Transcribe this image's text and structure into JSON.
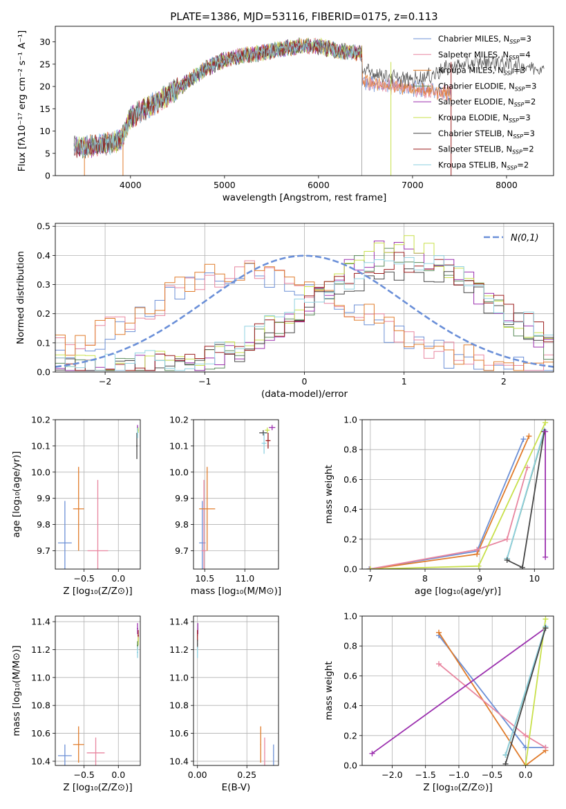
{
  "colors": {
    "Chabrier MILES": "#6b8fd6",
    "Salpeter MILES": "#e8859f",
    "Kroupa MILES": "#e07b2a",
    "Chabrier ELODIE": "#5a8a5a",
    "Salpeter ELODIE": "#9b2fae",
    "Kroupa ELODIE": "#c8e04a",
    "Chabrier STELIB": "#454545",
    "Salpeter STELIB": "#9b1c1c",
    "Kroupa STELIB": "#8fd1e0",
    "Gaussian": "#6a8fd8"
  },
  "chart_data": [
    {
      "type": "line",
      "title": "PLATE=1386, MJD=53116, FIBERID=0175, z=0.113",
      "xlabel": "wavelength [Angstrom, rest frame]",
      "ylabel": "Flux [fλ10⁻¹⁷ erg cm⁻² s⁻¹ A⁻¹]",
      "xlim": [
        3200,
        8500
      ],
      "ylim": [
        0,
        33.5
      ],
      "xticks": [
        "4000",
        "5000",
        "6000",
        "7000",
        "8000"
      ],
      "yticks": [
        "0",
        "5",
        "10",
        "15",
        "20",
        "25",
        "30"
      ],
      "grid": false,
      "legend_position": "top-right",
      "legend": [
        {
          "label": "Chabrier MILES, N",
          "sub": "SSP",
          "tail": "=3"
        },
        {
          "label": "Salpeter MILES, N",
          "sub": "SSP",
          "tail": "=4"
        },
        {
          "label": "Kroupa MILES, N",
          "sub": "SSP",
          "tail": "=3"
        },
        {
          "label": "Chabrier ELODIE, N",
          "sub": "SSP",
          "tail": "=3"
        },
        {
          "label": "Salpeter ELODIE, N",
          "sub": "SSP",
          "tail": "=2"
        },
        {
          "label": "Kroupa ELODIE, N",
          "sub": "SSP",
          "tail": "=3"
        },
        {
          "label": "Chabrier STELIB, N",
          "sub": "SSP",
          "tail": "=3"
        },
        {
          "label": "Salpeter STELIB, N",
          "sub": "SSP",
          "tail": "=2"
        },
        {
          "label": "Kroupa STELIB, N",
          "sub": "SSP",
          "tail": "=2"
        }
      ],
      "continuum_anchors": [
        [
          3400,
          6.2
        ],
        [
          3600,
          6.5
        ],
        [
          3900,
          8
        ],
        [
          4000,
          13
        ],
        [
          4200,
          15.5
        ],
        [
          4400,
          18
        ],
        [
          4600,
          21
        ],
        [
          4800,
          24
        ],
        [
          5000,
          26
        ],
        [
          5200,
          27
        ],
        [
          5400,
          27.5
        ],
        [
          5600,
          28.5
        ],
        [
          5800,
          29
        ],
        [
          6000,
          29
        ],
        [
          6200,
          28
        ],
        [
          6400,
          27.5
        ],
        [
          6500,
          27.5
        ]
      ],
      "red_tail": {
        "data": [
          [
            6450,
            23.5
          ],
          [
            6600,
            23
          ],
          [
            6800,
            22
          ],
          [
            7000,
            21.5
          ],
          [
            7200,
            22.5
          ],
          [
            7400,
            24.5
          ],
          [
            7600,
            25
          ],
          [
            7800,
            25.5
          ],
          [
            8000,
            25
          ],
          [
            8200,
            24.5
          ],
          [
            8400,
            24
          ]
        ],
        "models_miles": [
          [
            6450,
            21.5
          ],
          [
            6600,
            20.5
          ],
          [
            6800,
            20
          ],
          [
            7000,
            19.5
          ],
          [
            7200,
            19
          ],
          [
            7410,
            18.5
          ]
        ]
      },
      "drop_lines": [
        [
          3510,
          "#e07b2a"
        ],
        [
          3920,
          "#e07b2a"
        ],
        [
          6460,
          "#aaaaaa"
        ],
        [
          6770,
          "#c8e04a"
        ],
        [
          7410,
          "#9b1c1c"
        ]
      ]
    },
    {
      "type": "step",
      "xlabel": "(data-model)/error",
      "ylabel": "Normed distribution",
      "xlim": [
        -2.5,
        2.5
      ],
      "ylim": [
        0,
        0.51
      ],
      "xticks": [
        "−2",
        "−1",
        "0",
        "1",
        "2"
      ],
      "yticks": [
        "0.0",
        "0.1",
        "0.2",
        "0.3",
        "0.4",
        "0.5"
      ],
      "grid": true,
      "legend_position": "top-right",
      "gaussian_label": "N(0,1)",
      "gaussian": {
        "mean": 0,
        "sigma": 1
      },
      "bin_width": 0.1,
      "families": [
        {
          "names": [
            "Chabrier MILES",
            "Salpeter MILES",
            "Kroupa MILES"
          ],
          "mean": -0.55,
          "sigma": 1.05,
          "peak": 0.33
        },
        {
          "names": [
            "Chabrier ELODIE",
            "Salpeter ELODIE",
            "Kroupa ELODIE"
          ],
          "mean": 0.95,
          "sigma": 0.85,
          "peak": 0.41
        },
        {
          "names": [
            "Chabrier STELIB",
            "Salpeter STELIB",
            "Kroupa STELIB"
          ],
          "mean": 1.0,
          "sigma": 0.95,
          "peak": 0.36
        }
      ]
    },
    {
      "type": "errorbar",
      "xlabel": "Z [log10(Z/Z⊙)]",
      "ylabel": "age  [log10(age/yr)]",
      "xlim": [
        -0.92,
        0.32
      ],
      "ylim": [
        9.63,
        10.2
      ],
      "xticks": [
        "−0.5",
        "0.0"
      ],
      "yticks": [
        "9.7",
        "9.8",
        "9.9",
        "10.0",
        "10.1",
        "10.2"
      ],
      "grid": true,
      "points": [
        {
          "model": "Chabrier MILES",
          "x": -0.78,
          "y": 9.73,
          "xerr": 0.1,
          "yerr": 0.16
        },
        {
          "model": "Kroupa MILES",
          "x": -0.58,
          "y": 9.86,
          "xerr": 0.08,
          "yerr": 0.16
        },
        {
          "model": "Salpeter MILES",
          "x": -0.3,
          "y": 9.7,
          "xerr": 0.15,
          "yerr": 0.27
        },
        {
          "model": "Chabrier STELIB",
          "x": 0.27,
          "y": 10.1,
          "xerr": 0.01,
          "yerr": 0.05
        },
        {
          "model": "Salpeter ELODIE",
          "x": 0.28,
          "y": 10.17,
          "xerr": 0.01,
          "yerr": 0.01
        },
        {
          "model": "Kroupa ELODIE",
          "x": 0.29,
          "y": 10.16,
          "xerr": 0.01,
          "yerr": 0.01
        },
        {
          "model": "Kroupa STELIB",
          "x": 0.28,
          "y": 10.15,
          "xerr": 0.01,
          "yerr": 0.02
        }
      ]
    },
    {
      "type": "errorbar",
      "xlabel": "mass [log10(M/M⊙)]",
      "ylabel": "",
      "xlim": [
        10.36,
        11.42
      ],
      "ylim": [
        9.63,
        10.2
      ],
      "xticks": [
        "10.5",
        "11.0"
      ],
      "yticks": [
        "9.7",
        "9.8",
        "9.9",
        "10.0",
        "10.1",
        "10.2"
      ],
      "grid": true,
      "points": [
        {
          "model": "Chabrier MILES",
          "x": 10.47,
          "y": 9.73,
          "xerr": 0.04,
          "yerr": 0.16
        },
        {
          "model": "Salpeter MILES",
          "x": 10.49,
          "y": 9.7,
          "xerr": 0.03,
          "yerr": 0.27
        },
        {
          "model": "Kroupa MILES",
          "x": 10.53,
          "y": 9.86,
          "xerr": 0.1,
          "yerr": 0.16
        },
        {
          "model": "Chabrier STELIB",
          "x": 11.23,
          "y": 10.15,
          "xerr": 0.05,
          "yerr": 0.01
        },
        {
          "model": "Kroupa STELIB",
          "x": 11.24,
          "y": 10.11,
          "xerr": 0.03,
          "yerr": 0.04
        },
        {
          "model": "Salpeter STELIB",
          "x": 11.29,
          "y": 10.12,
          "xerr": 0.03,
          "yerr": 0.03
        },
        {
          "model": "Kroupa ELODIE",
          "x": 11.28,
          "y": 10.16,
          "xerr": 0.03,
          "yerr": 0.01
        },
        {
          "model": "Salpeter ELODIE",
          "x": 11.34,
          "y": 10.17,
          "xerr": 0.04,
          "yerr": 0.01
        }
      ]
    },
    {
      "type": "line",
      "xlabel": "age  [log10(age/yr)]",
      "ylabel": "mass weight",
      "xlim": [
        6.85,
        10.35
      ],
      "ylim": [
        0,
        1
      ],
      "xticks": [
        "7",
        "8",
        "9",
        "10"
      ],
      "yticks": [
        "0.0",
        "0.2",
        "0.4",
        "0.6",
        "0.8",
        "1.0"
      ],
      "grid": true,
      "series": [
        {
          "model": "Chabrier MILES",
          "points": [
            [
              6.98,
              0.0
            ],
            [
              8.95,
              0.12
            ],
            [
              9.8,
              0.87
            ]
          ]
        },
        {
          "model": "Kroupa MILES",
          "points": [
            [
              7.0,
              0.0
            ],
            [
              8.95,
              0.1
            ],
            [
              9.9,
              0.89
            ]
          ]
        },
        {
          "model": "Salpeter MILES",
          "points": [
            [
              6.99,
              0.0
            ],
            [
              8.95,
              0.13
            ],
            [
              9.5,
              0.2
            ],
            [
              9.87,
              0.68
            ]
          ]
        },
        {
          "model": "Kroupa ELODIE",
          "points": [
            [
              7.0,
              0.0
            ],
            [
              8.98,
              0.02
            ],
            [
              10.2,
              0.98
            ]
          ]
        },
        {
          "model": "Chabrier ELODIE",
          "points": [
            [
              9.5,
              0.07
            ],
            [
              10.18,
              0.92
            ]
          ]
        },
        {
          "model": "Kroupa STELIB",
          "points": [
            [
              9.5,
              0.07
            ],
            [
              10.18,
              0.93
            ]
          ]
        },
        {
          "model": "Chabrier STELIB",
          "points": [
            [
              9.5,
              0.06
            ],
            [
              9.78,
              0.01
            ],
            [
              10.18,
              0.92
            ]
          ]
        },
        {
          "model": "Salpeter ELODIE",
          "points": [
            [
              10.2,
              0.08
            ],
            [
              10.2,
              0.92
            ]
          ]
        }
      ]
    },
    {
      "type": "errorbar",
      "xlabel": "Z [log10(Z/Z⊙)]",
      "ylabel": "mass [log10(M/M⊙)]",
      "xlim": [
        -0.92,
        0.32
      ],
      "ylim": [
        10.37,
        11.44
      ],
      "xticks": [
        "−0.5",
        "0.0"
      ],
      "yticks": [
        "10.4",
        "10.6",
        "10.8",
        "11.0",
        "11.2",
        "11.4"
      ],
      "grid": true,
      "points": [
        {
          "model": "Chabrier MILES",
          "x": -0.78,
          "y": 10.44,
          "xerr": 0.1,
          "yerr": 0.08
        },
        {
          "model": "Kroupa MILES",
          "x": -0.58,
          "y": 10.52,
          "xerr": 0.08,
          "yerr": 0.13
        },
        {
          "model": "Salpeter MILES",
          "x": -0.33,
          "y": 10.46,
          "xerr": 0.13,
          "yerr": 0.11
        },
        {
          "model": "Salpeter ELODIE",
          "x": 0.28,
          "y": 11.35,
          "xerr": 0.01,
          "yerr": 0.04
        },
        {
          "model": "Salpeter STELIB",
          "x": 0.29,
          "y": 11.3,
          "xerr": 0.01,
          "yerr": 0.04
        },
        {
          "model": "Kroupa ELODIE",
          "x": 0.29,
          "y": 11.26,
          "xerr": 0.01,
          "yerr": 0.03
        },
        {
          "model": "Chabrier ELODIE",
          "x": 0.28,
          "y": 11.23,
          "xerr": 0.01,
          "yerr": 0.03
        },
        {
          "model": "Kroupa STELIB",
          "x": 0.28,
          "y": 11.18,
          "xerr": 0.01,
          "yerr": 0.04
        }
      ]
    },
    {
      "type": "errorbar",
      "xlabel": "E(B-V)",
      "ylabel": "",
      "xlim": [
        -0.02,
        0.41
      ],
      "ylim": [
        10.37,
        11.44
      ],
      "xticks": [
        "0.00",
        "0.25"
      ],
      "yticks": [
        "10.4",
        "10.6",
        "10.8",
        "11.0",
        "11.2",
        "11.4"
      ],
      "grid": true,
      "points": [
        {
          "model": "Salpeter ELODIE",
          "x": 0.002,
          "y": 11.35,
          "xerr": 0.002,
          "yerr": 0.04
        },
        {
          "model": "Salpeter STELIB",
          "x": 0.0,
          "y": 11.3,
          "xerr": 0.002,
          "yerr": 0.04
        },
        {
          "model": "Chabrier STELIB",
          "x": 0.0,
          "y": 11.24,
          "xerr": 0.002,
          "yerr": 0.03
        },
        {
          "model": "Kroupa STELIB",
          "x": 0.0,
          "y": 11.18,
          "xerr": 0.002,
          "yerr": 0.04
        },
        {
          "model": "Kroupa MILES",
          "x": 0.32,
          "y": 10.52,
          "xerr": 0.002,
          "yerr": 0.13
        },
        {
          "model": "Salpeter MILES",
          "x": 0.34,
          "y": 10.46,
          "xerr": 0.002,
          "yerr": 0.11
        },
        {
          "model": "Chabrier MILES",
          "x": 0.385,
          "y": 10.44,
          "xerr": 0.002,
          "yerr": 0.08
        }
      ]
    },
    {
      "type": "line",
      "xlabel": "Z [log10(Z/Z⊙)]",
      "ylabel": "mass weight",
      "xlim": [
        -2.45,
        0.42
      ],
      "ylim": [
        0,
        1
      ],
      "xticks": [
        "−2.0",
        "−1.5",
        "−1.0",
        "−0.5",
        "0.0"
      ],
      "yticks": [
        "0.0",
        "0.2",
        "0.4",
        "0.6",
        "0.8",
        "1.0"
      ],
      "grid": true,
      "series": [
        {
          "model": "Chabrier MILES",
          "points": [
            [
              -1.3,
              0.87
            ],
            [
              0.0,
              0.12
            ],
            [
              0.3,
              0.12
            ]
          ]
        },
        {
          "model": "Kroupa MILES",
          "points": [
            [
              -1.3,
              0.89
            ],
            [
              0.0,
              0.0
            ],
            [
              0.3,
              0.1
            ]
          ]
        },
        {
          "model": "Salpeter MILES",
          "points": [
            [
              -1.3,
              0.68
            ],
            [
              0.0,
              0.2
            ],
            [
              0.3,
              0.12
            ]
          ]
        },
        {
          "model": "Salpeter ELODIE",
          "points": [
            [
              -2.3,
              0.08
            ],
            [
              0.3,
              0.92
            ]
          ]
        },
        {
          "model": "Kroupa ELODIE",
          "points": [
            [
              0.0,
              0.0
            ],
            [
              0.3,
              0.98
            ]
          ]
        },
        {
          "model": "Chabrier ELODIE",
          "points": [
            [
              -0.3,
              0.07
            ],
            [
              0.3,
              0.92
            ]
          ]
        },
        {
          "model": "Kroupa STELIB",
          "points": [
            [
              -0.3,
              0.07
            ],
            [
              0.3,
              0.93
            ]
          ]
        },
        {
          "model": "Chabrier STELIB",
          "points": [
            [
              -0.3,
              0.01
            ],
            [
              0.3,
              0.92
            ]
          ]
        }
      ]
    }
  ]
}
